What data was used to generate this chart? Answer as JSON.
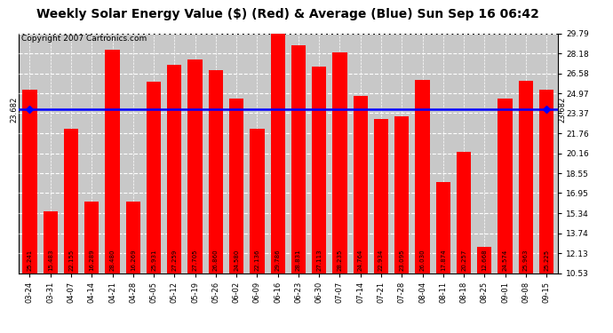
{
  "title": "Weekly Solar Energy Value ($) (Red) & Average (Blue) Sun Sep 16 06:42",
  "copyright": "Copyright 2007 Cartronics.com",
  "categories": [
    "03-24",
    "03-31",
    "04-07",
    "04-14",
    "04-21",
    "04-28",
    "05-05",
    "05-12",
    "05-19",
    "05-26",
    "06-02",
    "06-09",
    "06-16",
    "06-23",
    "06-30",
    "07-07",
    "07-14",
    "07-21",
    "07-28",
    "08-04",
    "08-11",
    "08-18",
    "08-25",
    "09-01",
    "09-08",
    "09-15"
  ],
  "values": [
    25.241,
    15.483,
    22.155,
    16.289,
    28.48,
    16.269,
    25.931,
    27.259,
    27.705,
    26.86,
    24.58,
    22.136,
    29.786,
    28.831,
    27.113,
    28.235,
    24.764,
    22.934,
    23.095,
    26.03,
    17.874,
    20.257,
    12.668,
    24.574,
    25.963,
    25.225
  ],
  "average": 23.682,
  "ylim_min": 10.53,
  "ylim_max": 29.79,
  "yticks": [
    10.53,
    12.13,
    13.74,
    15.34,
    16.95,
    18.55,
    20.16,
    21.76,
    23.37,
    24.97,
    26.58,
    28.18,
    29.79
  ],
  "bar_color": "#FF0000",
  "avg_line_color": "#0000FF",
  "avg_label": "23.682",
  "background_color": "#FFFFFF",
  "plot_bg_color": "#C8C8C8",
  "title_fontsize": 10,
  "copyright_fontsize": 6.5
}
